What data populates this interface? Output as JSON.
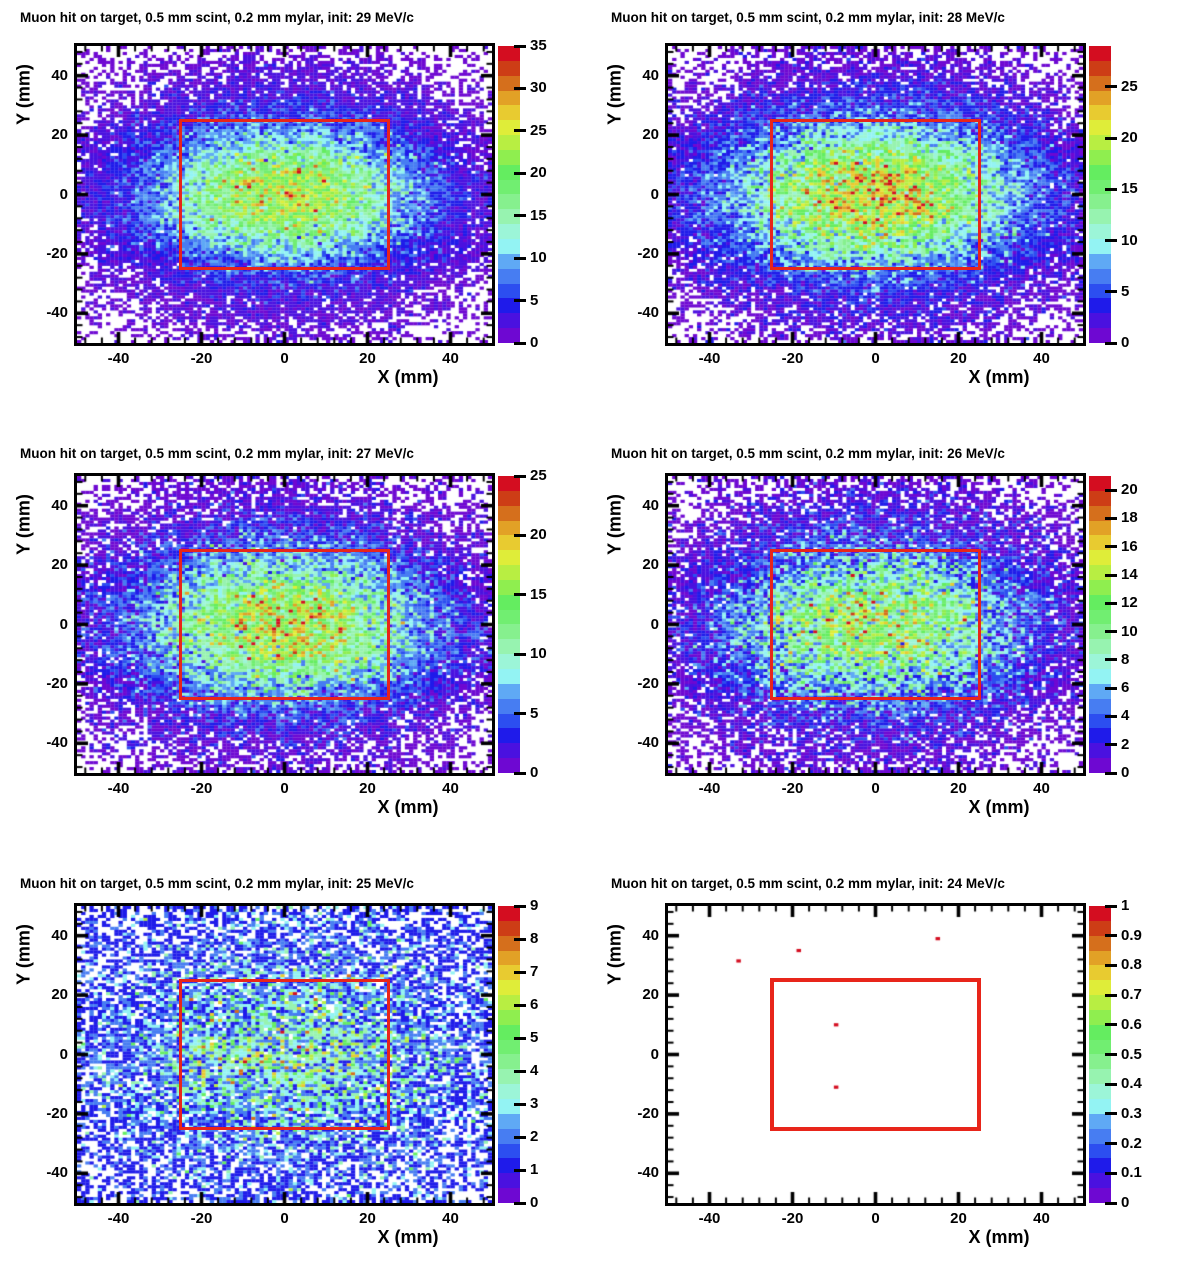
{
  "figure": {
    "background": "#ffffff",
    "axis_color": "#000000",
    "roi_color": "#e8251a",
    "empty_bin_color": "#ffffff",
    "palette": [
      "#6e08d2",
      "#4a11e0",
      "#1f1bea",
      "#2c4ef0",
      "#477df2",
      "#5fa9f5",
      "#93f3f3",
      "#9cf5d8",
      "#97f3b0",
      "#86f08e",
      "#71ee71",
      "#64ed60",
      "#8fee4f",
      "#b8ee42",
      "#dfed39",
      "#e8cb30",
      "#e2a126",
      "#d56f1c",
      "#cd3d16",
      "#d40d20"
    ]
  },
  "chart_data": [
    {
      "type": "heatmap",
      "title": "Muon hit on target, 0.5 mm scint, 0.2 mm mylar, init: 29 MeV/c",
      "xlabel": "X (mm)",
      "ylabel": "Y (mm)",
      "xlim": [
        -50,
        50
      ],
      "ylim": [
        -50,
        50
      ],
      "xticks": [
        -40,
        -20,
        0,
        20,
        40
      ],
      "yticks": [
        40,
        20,
        0,
        -20,
        -40
      ],
      "zmin": 0,
      "zmax": 35,
      "zticks": [
        0,
        5,
        10,
        15,
        20,
        25,
        30,
        35
      ],
      "bins": [
        100,
        100
      ],
      "roi_rect": {
        "x0": -25,
        "x1": 25,
        "y0": -25,
        "y1": 25
      },
      "roi_width": 3,
      "density_model": {
        "kind": "gaussian2d-poisson",
        "amp": 21,
        "sigma_x": 21,
        "sigma_y": 15,
        "bg_amp": 2.5,
        "bg_sigma": 30,
        "seed": 101
      }
    },
    {
      "type": "heatmap",
      "title": "Muon hit on target, 0.5 mm scint, 0.2 mm mylar, init: 28 MeV/c",
      "xlabel": "X (mm)",
      "ylabel": "Y (mm)",
      "xlim": [
        -50,
        50
      ],
      "ylim": [
        -50,
        50
      ],
      "xticks": [
        -40,
        -20,
        0,
        20,
        40
      ],
      "yticks": [
        40,
        20,
        0,
        -20,
        -40
      ],
      "zmin": 0,
      "zmax": 29,
      "zticks": [
        0,
        5,
        10,
        15,
        20,
        25
      ],
      "bins": [
        100,
        100
      ],
      "roi_rect": {
        "x0": -25,
        "x1": 25,
        "y0": -25,
        "y1": 25
      },
      "roi_width": 3,
      "density_model": {
        "kind": "gaussian2d-poisson",
        "amp": 19.5,
        "sigma_x": 23,
        "sigma_y": 16,
        "bg_amp": 2.5,
        "bg_sigma": 31,
        "seed": 202
      }
    },
    {
      "type": "heatmap",
      "title": "Muon hit on target, 0.5 mm scint, 0.2 mm mylar, init: 27 MeV/c",
      "xlabel": "X (mm)",
      "ylabel": "Y (mm)",
      "xlim": [
        -50,
        50
      ],
      "ylim": [
        -50,
        50
      ],
      "xticks": [
        -40,
        -20,
        0,
        20,
        40
      ],
      "yticks": [
        40,
        20,
        0,
        -20,
        -40
      ],
      "zmin": 0,
      "zmax": 25,
      "zticks": [
        0,
        5,
        10,
        15,
        20,
        25
      ],
      "bins": [
        100,
        100
      ],
      "roi_rect": {
        "x0": -25,
        "x1": 25,
        "y0": -25,
        "y1": 25
      },
      "roi_width": 3,
      "density_model": {
        "kind": "gaussian2d-poisson",
        "amp": 15,
        "sigma_x": 22,
        "sigma_y": 16,
        "bg_amp": 2.4,
        "bg_sigma": 32,
        "seed": 303
      }
    },
    {
      "type": "heatmap",
      "title": "Muon hit on target, 0.5 mm scint, 0.2 mm mylar, init: 26 MeV/c",
      "xlabel": "X (mm)",
      "ylabel": "Y (mm)",
      "xlim": [
        -50,
        50
      ],
      "ylim": [
        -50,
        50
      ],
      "xticks": [
        -40,
        -20,
        0,
        20,
        40
      ],
      "yticks": [
        40,
        20,
        0,
        -20,
        -40
      ],
      "zmin": 0,
      "zmax": 21,
      "zticks": [
        0,
        2,
        4,
        6,
        8,
        10,
        12,
        14,
        16,
        18,
        20
      ],
      "bins": [
        100,
        100
      ],
      "roi_rect": {
        "x0": -25,
        "x1": 25,
        "y0": -25,
        "y1": 25
      },
      "roi_width": 3,
      "density_model": {
        "kind": "gaussian2d-poisson",
        "amp": 10.5,
        "sigma_x": 23,
        "sigma_y": 17,
        "bg_amp": 2.3,
        "bg_sigma": 33,
        "seed": 404
      }
    },
    {
      "type": "heatmap",
      "title": "Muon hit on target, 0.5 mm scint, 0.2 mm mylar, init: 25 MeV/c",
      "xlabel": "X (mm)",
      "ylabel": "Y (mm)",
      "xlim": [
        -50,
        50
      ],
      "ylim": [
        -50,
        50
      ],
      "xticks": [
        -40,
        -20,
        0,
        20,
        40
      ],
      "yticks": [
        40,
        20,
        0,
        -20,
        -40
      ],
      "zmin": 0,
      "zmax": 9,
      "zticks": [
        0,
        1,
        2,
        3,
        4,
        5,
        6,
        7,
        8,
        9
      ],
      "bins": [
        100,
        100
      ],
      "roi_rect": {
        "x0": -25,
        "x1": 25,
        "y0": -25,
        "y1": 25
      },
      "roi_width": 3,
      "density_model": {
        "kind": "gaussian2d-poisson",
        "amp": 2.4,
        "sigma_x": 24,
        "sigma_y": 18,
        "bg_amp": 1.3,
        "bg_sigma": 50,
        "seed": 505
      }
    },
    {
      "type": "heatmap",
      "title": "Muon hit on target, 0.5 mm scint, 0.2 mm mylar, init: 24 MeV/c",
      "xlabel": "X (mm)",
      "ylabel": "Y (mm)",
      "xlim": [
        -50,
        50
      ],
      "ylim": [
        -50,
        50
      ],
      "xticks": [
        -40,
        -20,
        0,
        20,
        40
      ],
      "yticks": [
        40,
        20,
        0,
        -20,
        -40
      ],
      "zmin": 0,
      "zmax": 1,
      "zticks": [
        0,
        0.1,
        0.2,
        0.3,
        0.4,
        0.5,
        0.6,
        0.7,
        0.8,
        0.9,
        1
      ],
      "bins": [
        100,
        100
      ],
      "roi_rect": {
        "x0": -25,
        "x1": 25,
        "y0": -25,
        "y1": 25
      },
      "roi_width": 4,
      "density_model": null,
      "points": [
        {
          "x": -33,
          "y": 31.5,
          "value": 1
        },
        {
          "x": -18.5,
          "y": 35,
          "value": 1
        },
        {
          "x": 15,
          "y": 39,
          "value": 1
        },
        {
          "x": -9.5,
          "y": 10,
          "value": 1
        },
        {
          "x": -9.5,
          "y": -11,
          "value": 1
        }
      ]
    }
  ]
}
